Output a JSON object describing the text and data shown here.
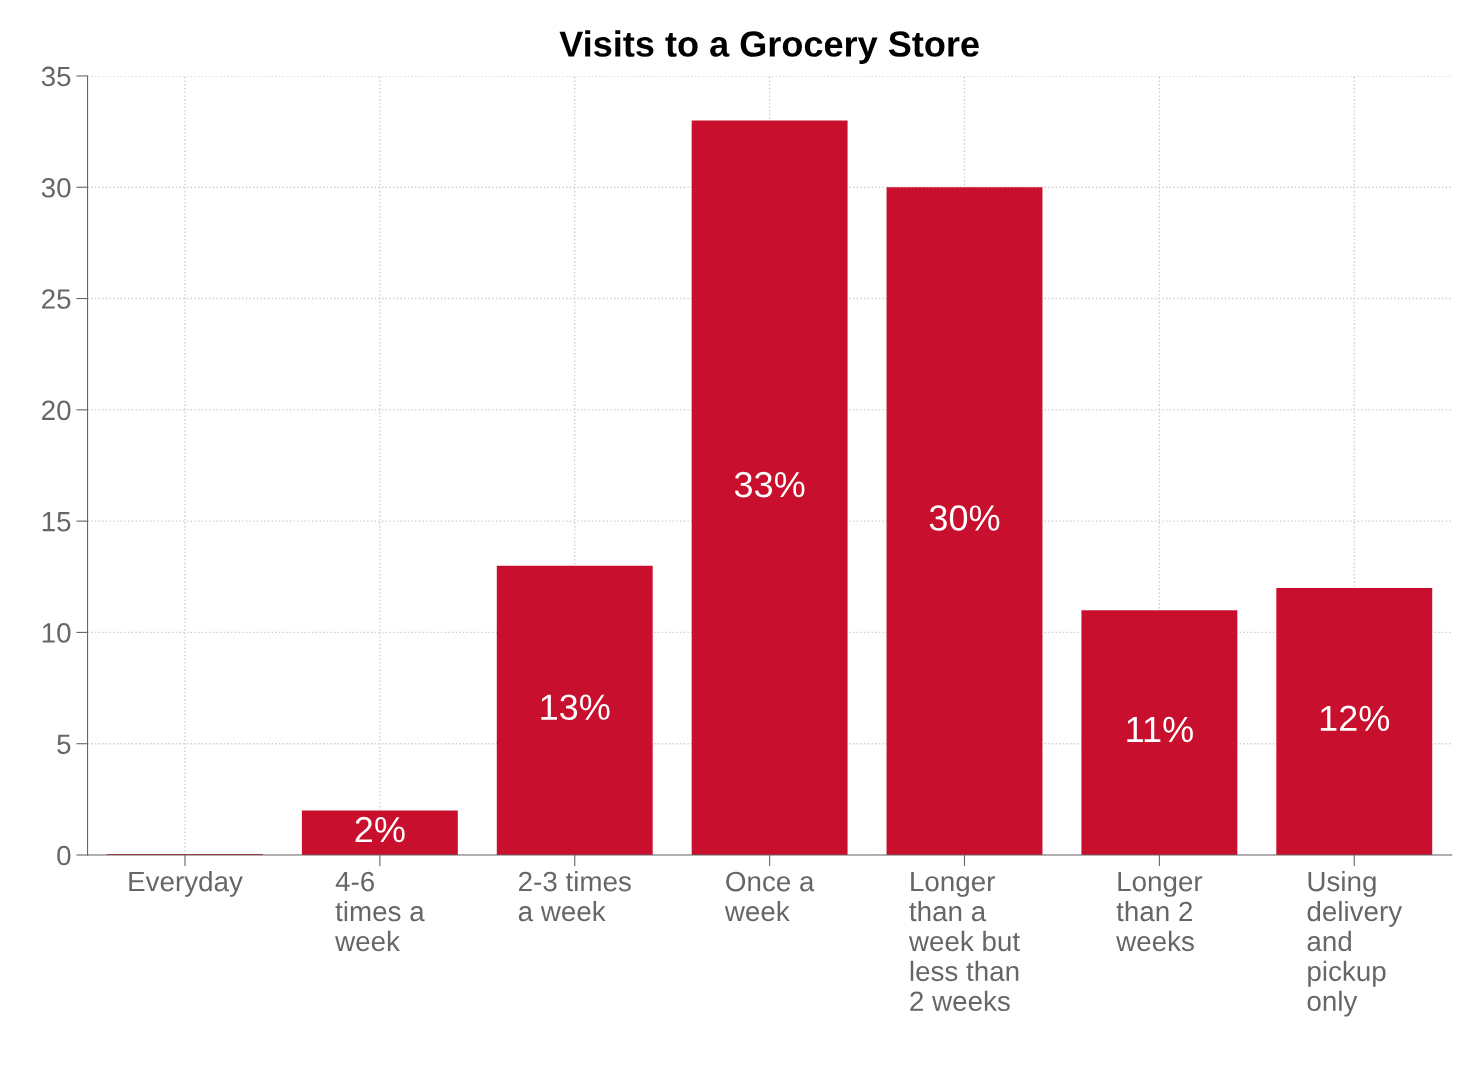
{
  "chart_data": {
    "type": "bar",
    "title": "Visits to a Grocery Store",
    "categories": [
      "Everyday",
      "4-6\ntimes a\nweek",
      "2-3 times\na week",
      "Once a\nweek",
      "Longer\nthan a\nweek but\nless than\n2 weeks",
      "Longer\nthan 2\nweeks",
      "Using\ndelivery\nand\npickup\nonly"
    ],
    "values": [
      0,
      2,
      13,
      33,
      30,
      11,
      12
    ],
    "value_labels": [
      null,
      "2%",
      "13%",
      "33%",
      "30%",
      "11%",
      "12%"
    ],
    "color": "#c8102e",
    "ylim": [
      0,
      35
    ],
    "yticks": [
      0,
      5,
      10,
      15,
      20,
      25,
      30,
      35
    ],
    "grid": true
  }
}
